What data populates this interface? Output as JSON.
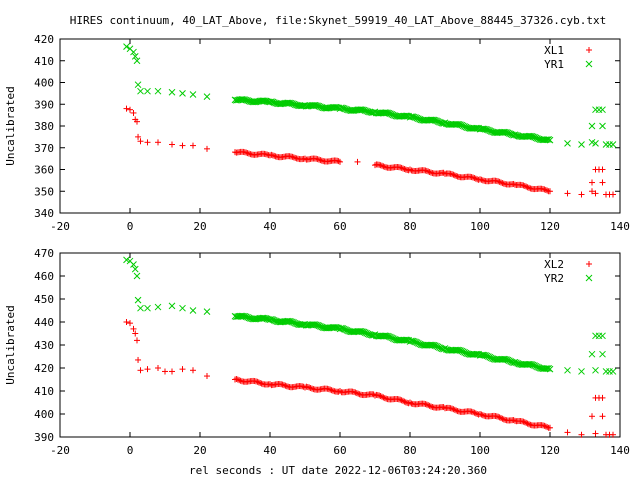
{
  "title": "HIRES continuum, 40_LAT_Above, file:Skynet_59919_40_LAT_Above_88445_37326.cyb.txt",
  "xlabel": "rel seconds : UT date 2022-12-06T03:24:20.360",
  "chart_data": [
    {
      "type": "scatter",
      "ylabel": "Uncalibrated",
      "xlim": [
        -20,
        140
      ],
      "ylim": [
        340,
        420
      ],
      "xticks": [
        "-20",
        "0",
        "20",
        "40",
        "60",
        "80",
        "100",
        "120",
        "140"
      ],
      "yticks": [
        "340",
        "350",
        "360",
        "370",
        "380",
        "390",
        "400",
        "410",
        "420"
      ],
      "legend_position": "top-right",
      "series": [
        {
          "name": "XL1",
          "marker": "+",
          "color": "#ff0000",
          "points": [
            [
              -1,
              388
            ],
            [
              0,
              387.5
            ],
            [
              1,
              386
            ],
            [
              1.5,
              383
            ],
            [
              2,
              382
            ],
            [
              2.3,
              375
            ],
            [
              3,
              373
            ],
            [
              5,
              372.5
            ],
            [
              8,
              372.5
            ],
            [
              12,
              371.5
            ],
            [
              15,
              371
            ],
            [
              18,
              371
            ],
            [
              22,
              369.5
            ],
            [
              30,
              368
            ],
            [
              40,
              366.5
            ],
            [
              50,
              365
            ],
            [
              60,
              363.5
            ],
            [
              65,
              363.5
            ],
            [
              70,
              362
            ],
            [
              80,
              360
            ],
            [
              90,
              358
            ],
            [
              100,
              355.5
            ],
            [
              110,
              353
            ],
            [
              120,
              350
            ],
            [
              125,
              349
            ],
            [
              129,
              348.5
            ],
            [
              132,
              350
            ],
            [
              133,
              360
            ],
            [
              134,
              360
            ],
            [
              135,
              360
            ],
            [
              132,
              354
            ],
            [
              135,
              354
            ],
            [
              133,
              349
            ],
            [
              136,
              348.5
            ],
            [
              137,
              348.5
            ],
            [
              138,
              348.5
            ]
          ]
        },
        {
          "name": "YR1",
          "marker": "x",
          "color": "#00cc00",
          "points": [
            [
              -1,
              416.5
            ],
            [
              0,
              415.5
            ],
            [
              1,
              414
            ],
            [
              1.5,
              412
            ],
            [
              2,
              410
            ],
            [
              2.3,
              399
            ],
            [
              3,
              396
            ],
            [
              5,
              396
            ],
            [
              8,
              396
            ],
            [
              12,
              395.5
            ],
            [
              15,
              395
            ],
            [
              18,
              394.5
            ],
            [
              22,
              393.5
            ],
            [
              30,
              392
            ],
            [
              40,
              391
            ],
            [
              50,
              389.5
            ],
            [
              60,
              388
            ],
            [
              70,
              386.5
            ],
            [
              80,
              384
            ],
            [
              90,
              381.5
            ],
            [
              100,
              378.5
            ],
            [
              110,
              376
            ],
            [
              120,
              373.5
            ],
            [
              125,
              372
            ],
            [
              129,
              371.5
            ],
            [
              132,
              372.5
            ],
            [
              133,
              387.5
            ],
            [
              134,
              387.5
            ],
            [
              135,
              387.5
            ],
            [
              132,
              380
            ],
            [
              135,
              380
            ],
            [
              133,
              372
            ],
            [
              136,
              371.5
            ],
            [
              137,
              371.5
            ],
            [
              138,
              371.5
            ]
          ]
        }
      ]
    },
    {
      "type": "scatter",
      "ylabel": "Uncalibrated",
      "xlim": [
        -20,
        140
      ],
      "ylim": [
        390,
        470
      ],
      "xticks": [
        "-20",
        "0",
        "20",
        "40",
        "60",
        "80",
        "100",
        "120",
        "140"
      ],
      "yticks": [
        "390",
        "400",
        "410",
        "420",
        "430",
        "440",
        "450",
        "460",
        "470"
      ],
      "legend_position": "top-right",
      "series": [
        {
          "name": "XL2",
          "marker": "+",
          "color": "#ff0000",
          "points": [
            [
              -1,
              440
            ],
            [
              0,
              439.5
            ],
            [
              1,
              437
            ],
            [
              1.5,
              435
            ],
            [
              2,
              432
            ],
            [
              2.3,
              423.5
            ],
            [
              3,
              419
            ],
            [
              5,
              419.5
            ],
            [
              8,
              420
            ],
            [
              10,
              418.5
            ],
            [
              12,
              418.5
            ],
            [
              15,
              419.5
            ],
            [
              18,
              419
            ],
            [
              22,
              416.5
            ],
            [
              30,
              415
            ],
            [
              40,
              413
            ],
            [
              50,
              411.5
            ],
            [
              60,
              410
            ],
            [
              70,
              408
            ],
            [
              80,
              405
            ],
            [
              90,
              402.5
            ],
            [
              100,
              400
            ],
            [
              110,
              397
            ],
            [
              120,
              394
            ],
            [
              125,
              392
            ],
            [
              129,
              391
            ],
            [
              133,
              407
            ],
            [
              134,
              407
            ],
            [
              135,
              407
            ],
            [
              132,
              399
            ],
            [
              135,
              399
            ],
            [
              133,
              391.5
            ],
            [
              136,
              391
            ],
            [
              137,
              391
            ],
            [
              138,
              391
            ]
          ]
        },
        {
          "name": "YR2",
          "marker": "x",
          "color": "#00cc00",
          "points": [
            [
              -1,
              467
            ],
            [
              0,
              466.5
            ],
            [
              1,
              465
            ],
            [
              1.5,
              463
            ],
            [
              2,
              460
            ],
            [
              2.3,
              449.5
            ],
            [
              3,
              446
            ],
            [
              5,
              446
            ],
            [
              8,
              446.5
            ],
            [
              12,
              447
            ],
            [
              15,
              446
            ],
            [
              18,
              445
            ],
            [
              22,
              444.5
            ],
            [
              30,
              442.5
            ],
            [
              40,
              441
            ],
            [
              50,
              439
            ],
            [
              60,
              437
            ],
            [
              70,
              434.5
            ],
            [
              80,
              431.5
            ],
            [
              90,
              428.5
            ],
            [
              100,
              425.5
            ],
            [
              110,
              422.5
            ],
            [
              120,
              419.5
            ],
            [
              125,
              419
            ],
            [
              129,
              418.5
            ],
            [
              133,
              434
            ],
            [
              134,
              434
            ],
            [
              135,
              434
            ],
            [
              132,
              426
            ],
            [
              135,
              426
            ],
            [
              133,
              419
            ],
            [
              136,
              418.5
            ],
            [
              137,
              418.5
            ],
            [
              138,
              418.5
            ]
          ]
        }
      ]
    }
  ]
}
